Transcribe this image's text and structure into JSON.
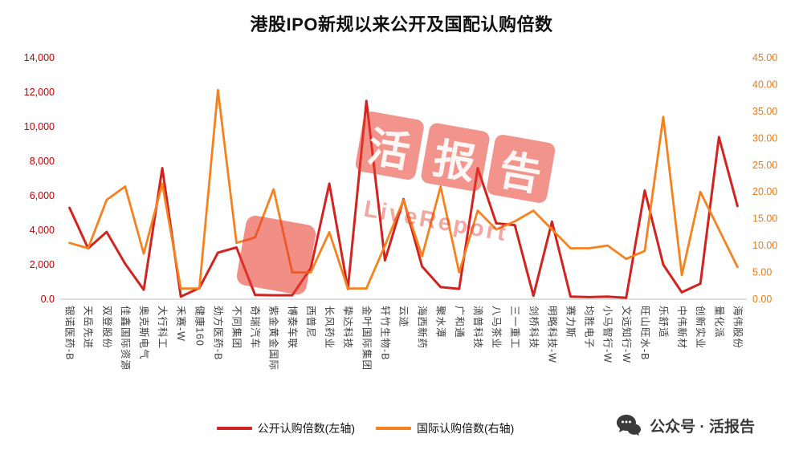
{
  "title": "港股IPO新规以来公开及国配认购倍数",
  "watermark": {
    "chars": [
      "活",
      "报",
      "告"
    ],
    "subtext": "LiveReport"
  },
  "legend": [
    {
      "label": "公开认购倍数(左轴)",
      "color": "#D2231F"
    },
    {
      "label": "国际认购倍数(右轴)",
      "color": "#F5821F"
    }
  ],
  "footer": {
    "text": "公众号 · 活报告"
  },
  "chart_data": {
    "type": "line",
    "title": "港股IPO新规以来公开及国配认购倍数",
    "xlabel": "",
    "ylabel": "",
    "grid": false,
    "legend_position": "bottom",
    "axis_line_color": "#BFBFBF",
    "category_label_color": "#3f3f3f",
    "categories": [
      "银诺医药-B",
      "天岳先进",
      "双登股份",
      "佳鑫国际资源",
      "奥克斯电气",
      "大行科工",
      "禾赛-W",
      "健康160",
      "劲方医药-B",
      "不同集团",
      "奇瑞汽车",
      "紫金黄金国际",
      "博泰车联",
      "西普尼",
      "长风药业",
      "挚达科技",
      "金叶国际集团",
      "轩竹生物-B",
      "云迹",
      "海西新药",
      "聚水潭",
      "广和通",
      "滴普科技",
      "八马茶业",
      "三一重工",
      "剑桥科技",
      "明略科技-W",
      "赛力斯",
      "均胜电子",
      "小马智行-W",
      "文远知行-W",
      "旺山旺水-B",
      "乐舒适",
      "中伟新材",
      "创新实业",
      "量化派",
      "海伟股份"
    ],
    "left_axis": {
      "min": 0,
      "max": 14000,
      "step": 2000,
      "color": "#C00000",
      "tick_labels": [
        "0.0",
        "2,000",
        "4,000",
        "6,000",
        "8,000",
        "10,000",
        "12,000",
        "14,000"
      ]
    },
    "right_axis": {
      "min": 0,
      "max": 45,
      "step": 5,
      "color": "#E87B17",
      "tick_labels": [
        "0.00",
        "5.00",
        "10.00",
        "15.00",
        "20.00",
        "25.00",
        "30.00",
        "35.00",
        "40.00",
        "45.00"
      ]
    },
    "series": [
      {
        "name": "公开认购倍数(左轴)",
        "axis": "left",
        "color": "#D2231F",
        "values": [
          5300,
          2950,
          3900,
          2050,
          550,
          7600,
          150,
          650,
          2700,
          3000,
          250,
          230,
          230,
          1800,
          6700,
          600,
          11500,
          2250,
          5800,
          1900,
          700,
          600,
          7600,
          4400,
          4300,
          200,
          4500,
          150,
          120,
          150,
          80,
          6300,
          2000,
          400,
          900,
          9400,
          5400
        ]
      },
      {
        "name": "国际认购倍数(右轴)",
        "axis": "right",
        "color": "#F5821F",
        "values": [
          10.5,
          9.5,
          18.5,
          21,
          8.5,
          21.5,
          2,
          2,
          39,
          10.5,
          11.5,
          20.5,
          5,
          5,
          12.5,
          2,
          2,
          10,
          18.5,
          8,
          21,
          5,
          16.5,
          13,
          14.5,
          16.5,
          13,
          9.5,
          9.5,
          10,
          7.5,
          9,
          34,
          4.5,
          20,
          13,
          6
        ]
      }
    ]
  }
}
